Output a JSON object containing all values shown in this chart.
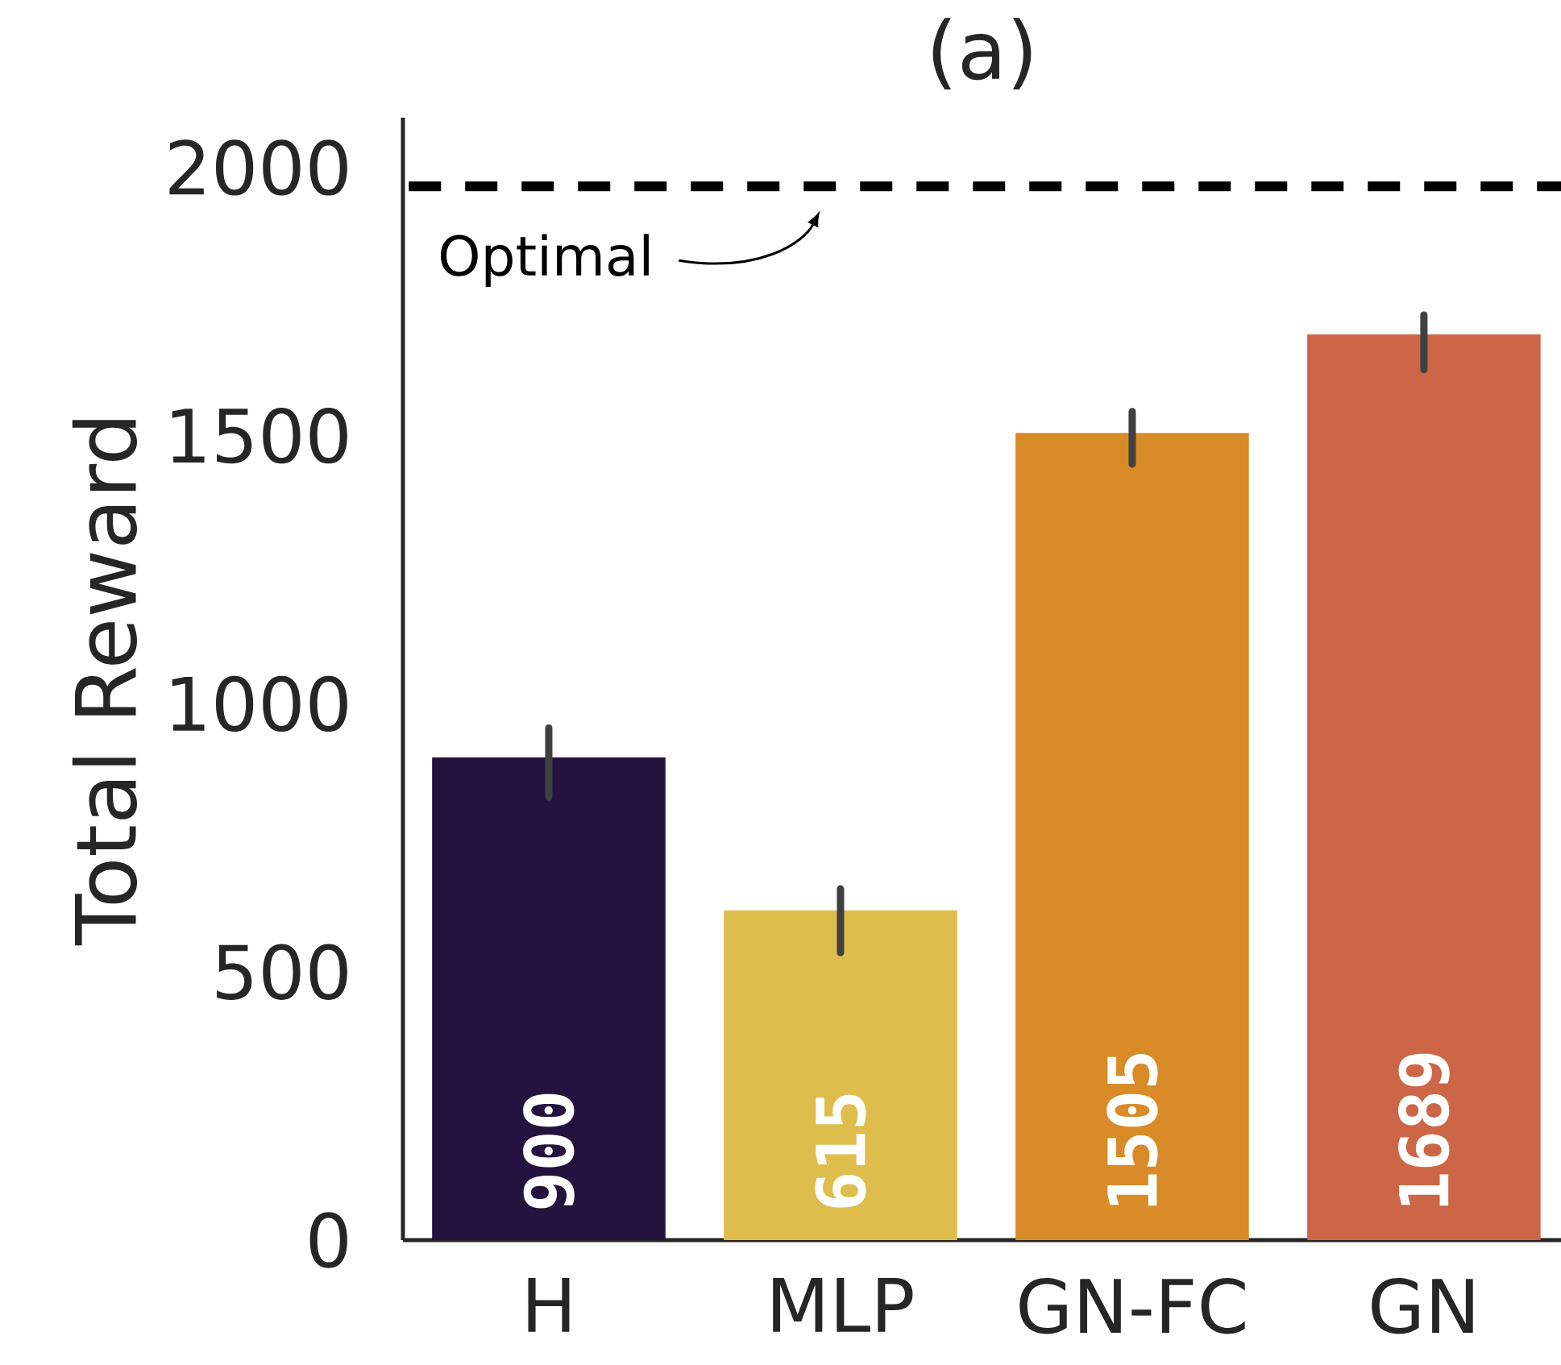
{
  "chart_data": {
    "type": "bar",
    "title": "(a)",
    "ylabel": "Total Reward",
    "categories": [
      "H",
      "MLP",
      "GN-FC",
      "GN"
    ],
    "values": [
      900,
      615,
      1505,
      1689
    ],
    "colors": [
      "#24133f",
      "#dfbd4d",
      "#d98b28",
      "#cd6647"
    ],
    "errors": [
      [
        826,
        955
      ],
      [
        536,
        655
      ],
      [
        1447,
        1545
      ],
      [
        1623,
        1725
      ]
    ],
    "data_labels": true,
    "ylim": [
      0,
      2093
    ],
    "yticks": [
      0,
      500,
      1000,
      1500,
      2000
    ],
    "ref_lines": [
      {
        "axis": "y",
        "value": 1965,
        "label": "Optimal",
        "color": "#000000",
        "line_style": "dashed"
      }
    ]
  }
}
